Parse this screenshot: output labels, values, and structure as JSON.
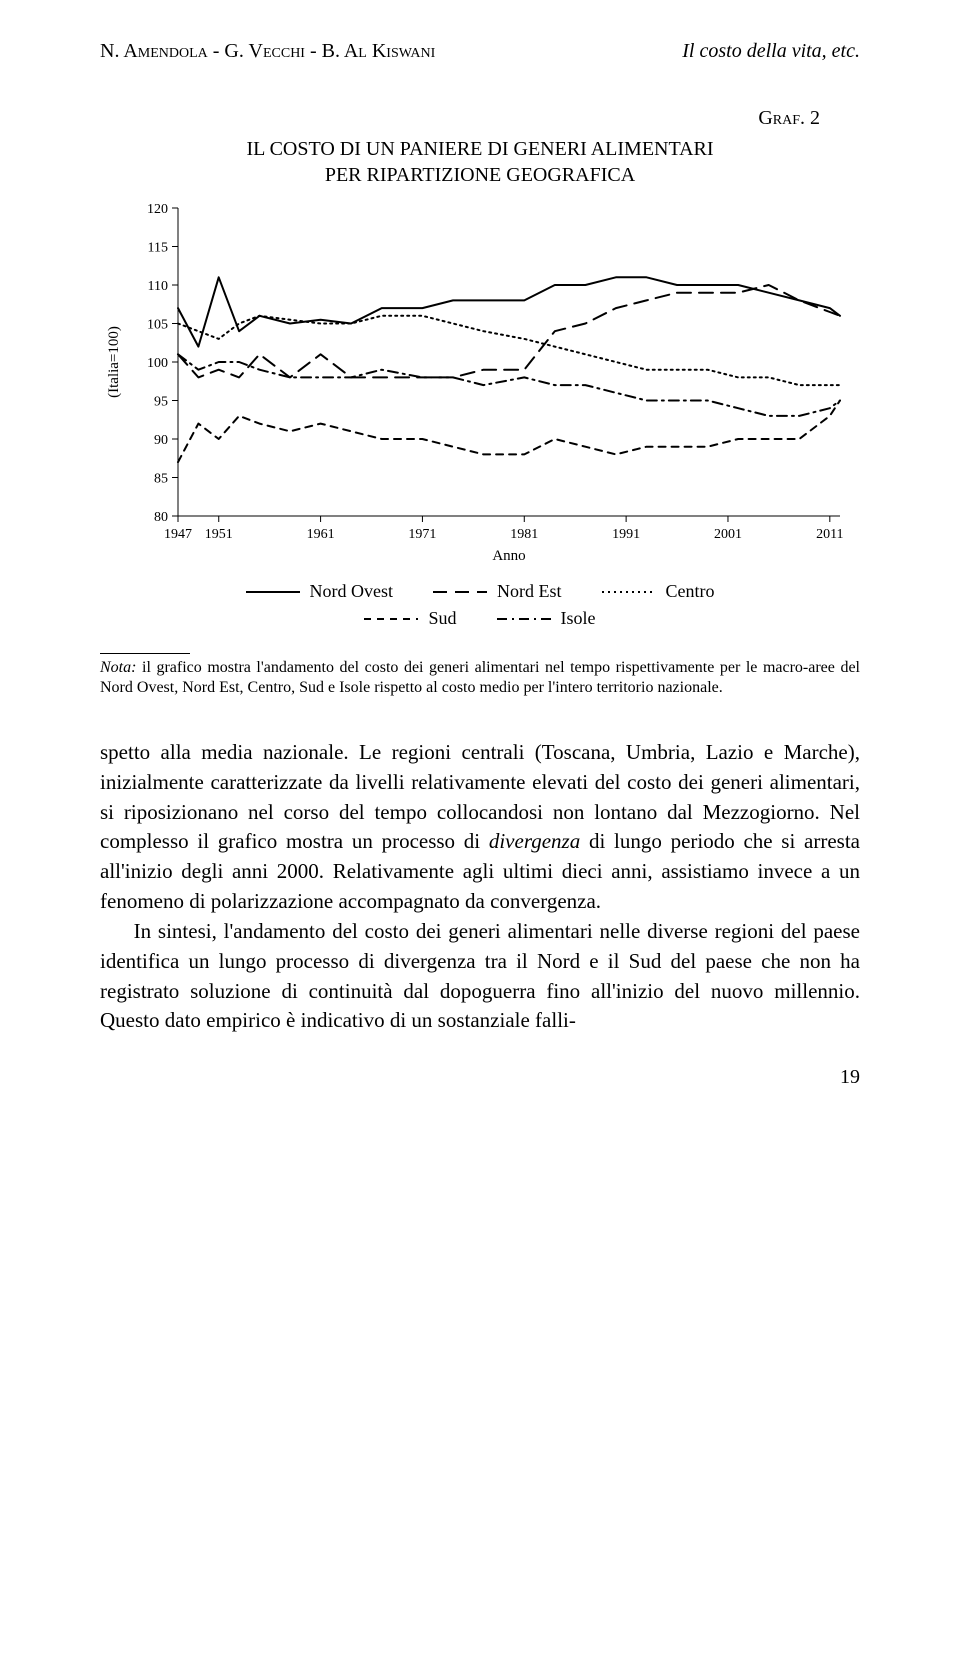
{
  "header": {
    "authors": "N. Amendola - G. Vecchi - B. Al Kiswani",
    "running_title": "Il costo della vita, etc."
  },
  "graf_label": "Graf. 2",
  "chart": {
    "type": "line",
    "title_line1": "IL COSTO DI UN PANIERE DI GENERI ALIMENTARI",
    "title_line2": "PER RIPARTIZIONE GEOGRAFICA",
    "ylabel": "(Italia=100)",
    "xlabel": "Anno",
    "ylim": [
      80,
      120
    ],
    "yticks": [
      80,
      85,
      90,
      95,
      100,
      105,
      110,
      115,
      120
    ],
    "xticks": [
      1947,
      1951,
      1961,
      1971,
      1981,
      1991,
      2001,
      2011
    ],
    "xrange": [
      1947,
      2012
    ],
    "line_color": "#000000",
    "axis_color": "#000000",
    "tick_fontsize": 14,
    "label_fontsize": 15,
    "line_width": 2.0,
    "background_color": "#ffffff",
    "series": [
      {
        "name": "Nord Ovest",
        "dash": "solid",
        "years": [
          1947,
          1949,
          1951,
          1953,
          1955,
          1958,
          1961,
          1964,
          1967,
          1971,
          1974,
          1977,
          1981,
          1984,
          1987,
          1990,
          1993,
          1996,
          1999,
          2002,
          2005,
          2008,
          2011,
          2012
        ],
        "values": [
          107,
          102,
          111,
          104,
          106,
          105,
          105.5,
          105,
          107,
          107,
          108,
          108,
          108,
          110,
          110,
          111,
          111,
          110,
          110,
          110,
          109,
          108,
          107,
          106
        ]
      },
      {
        "name": "Nord Est",
        "dash": "long-dash",
        "years": [
          1947,
          1949,
          1951,
          1953,
          1955,
          1958,
          1961,
          1964,
          1967,
          1971,
          1974,
          1977,
          1981,
          1984,
          1987,
          1990,
          1993,
          1996,
          1999,
          2002,
          2005,
          2008,
          2011,
          2012
        ],
        "values": [
          101,
          98,
          99,
          98,
          101,
          98,
          101,
          98,
          98,
          98,
          98,
          99,
          99,
          104,
          105,
          107,
          108,
          109,
          109,
          109,
          110,
          108,
          106.5,
          106
        ]
      },
      {
        "name": "Centro",
        "dash": "dotted",
        "years": [
          1947,
          1949,
          1951,
          1953,
          1955,
          1958,
          1961,
          1964,
          1967,
          1971,
          1974,
          1977,
          1981,
          1984,
          1987,
          1990,
          1993,
          1996,
          1999,
          2002,
          2005,
          2008,
          2011,
          2012
        ],
        "values": [
          105,
          104,
          103,
          105,
          106,
          105.5,
          105,
          105,
          106,
          106,
          105,
          104,
          103,
          102,
          101,
          100,
          99,
          99,
          99,
          98,
          98,
          97,
          97,
          97
        ]
      },
      {
        "name": "Sud",
        "dash": "short-dash",
        "years": [
          1947,
          1949,
          1951,
          1953,
          1955,
          1958,
          1961,
          1964,
          1967,
          1971,
          1974,
          1977,
          1981,
          1984,
          1987,
          1990,
          1993,
          1996,
          1999,
          2002,
          2005,
          2008,
          2011,
          2012
        ],
        "values": [
          87,
          92,
          90,
          93,
          92,
          91,
          92,
          91,
          90,
          90,
          89,
          88,
          88,
          90,
          89,
          88,
          89,
          89,
          89,
          90,
          90,
          90,
          93,
          95
        ]
      },
      {
        "name": "Isole",
        "dash": "dash-dot",
        "years": [
          1947,
          1949,
          1951,
          1953,
          1955,
          1958,
          1961,
          1964,
          1967,
          1971,
          1974,
          1977,
          1981,
          1984,
          1987,
          1990,
          1993,
          1996,
          1999,
          2002,
          2005,
          2008,
          2011,
          2012
        ],
        "values": [
          101,
          99,
          100,
          100,
          99,
          98,
          98,
          98,
          99,
          98,
          98,
          97,
          98,
          97,
          97,
          96,
          95,
          95,
          95,
          94,
          93,
          93,
          94,
          95
        ]
      }
    ],
    "legend": {
      "rows": [
        [
          "Nord Ovest",
          "Nord Est",
          "Centro"
        ],
        [
          "Sud",
          "Isole"
        ]
      ]
    }
  },
  "note": {
    "lead": "Nota:",
    "text": " il grafico mostra l'andamento del costo dei generi alimentari nel tempo rispettivamente per le macro-aree del Nord Ovest, Nord Est, Centro, Sud e Isole rispetto al costo medio per l'intero territorio nazionale."
  },
  "body": {
    "p1": "spetto alla media nazionale. Le regioni centrali (Toscana, Umbria, Lazio e Marche), inizialmente caratterizzate da livelli relativamente elevati del costo dei generi alimentari, si riposizionano nel corso del tempo collocandosi non lontano dal Mezzogiorno. Nel complesso il grafico mostra un processo di divergenza di lungo periodo che si arresta all'inizio degli anni 2000. Relativamente agli ultimi dieci anni, assistiamo invece a un fenomeno di polarizzazione accompagnato da convergenza.",
    "p2": "In sintesi, l'andamento del costo dei generi alimentari nelle diverse regioni del paese identifica un lungo processo di divergenza tra il Nord e il Sud del paese che non ha registrato soluzione di continuità dal dopoguerra fino all'inizio del nuovo millennio. Questo dato empirico è indicativo di un sostanziale falli-"
  },
  "page_number": "19",
  "italic_word": "divergenza"
}
